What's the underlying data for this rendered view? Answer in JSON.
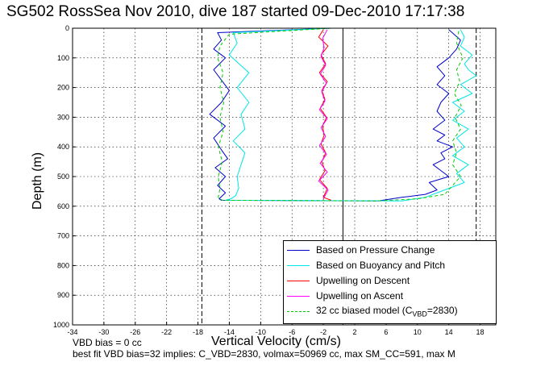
{
  "title": "SG502 RossSea Nov 2010, dive 187 started 09-Dec-2010 17:17:38",
  "notes": {
    "line1": "VBD bias = 0 cc",
    "line2": "best fit VBD bias=32 implies: C_VBD=2830, volmax=50969 cc, max SM_CC=591, max M"
  },
  "chart_data": {
    "type": "line",
    "xlabel": "Vertical Velocity (cm/s)",
    "ylabel": "Depth (m)",
    "xlim": [
      -34,
      20
    ],
    "ylim": [
      1000,
      0
    ],
    "xticks": [
      -34,
      -30,
      -26,
      -22,
      -18,
      -14,
      -10,
      -6,
      -2,
      2,
      6,
      10,
      14,
      18
    ],
    "yticks": [
      0,
      100,
      200,
      300,
      400,
      500,
      600,
      700,
      800,
      900,
      1000
    ],
    "grid": true,
    "legend_position": "bottom-right",
    "reference_lines": {
      "dashed_x": [
        -17.5,
        17.5
      ],
      "solid_x": [
        0.5
      ]
    },
    "legend": [
      {
        "label": "Based on Pressure Change",
        "color": "#0000cc",
        "dash": false
      },
      {
        "label": "Based on Buoyancy and Pitch",
        "color": "#00e6e6",
        "dash": false
      },
      {
        "label": "Upwelling on Descent",
        "color": "#ff0000",
        "dash": false
      },
      {
        "label": "Upwelling on Ascent",
        "color": "#ff00ff",
        "dash": false
      },
      {
        "label": "32 cc biased model (C",
        "sub": "VBD",
        "suffix": "=2830)",
        "color": "#00cc00",
        "dash": true
      }
    ],
    "series": [
      {
        "name": "Based on Pressure Change",
        "color": "#0000cc",
        "x": [
          -1,
          -15.5,
          -15,
          -16,
          -14.5,
          -16,
          -15,
          -14,
          -15,
          -16.5,
          -14.5,
          -16,
          -15,
          -14.2,
          -15.8,
          -14.5,
          -15.5,
          -14.5,
          -15.3,
          -15,
          5,
          8,
          11,
          12.5,
          11.5,
          14,
          13,
          12,
          13.5,
          13,
          14.5,
          12.5,
          13.5,
          12,
          13.5,
          12.5,
          13,
          14,
          12.5,
          13.5,
          12.5,
          14,
          15,
          15.5,
          14
        ],
        "y": [
          0,
          15,
          40,
          70,
          100,
          140,
          175,
          210,
          250,
          290,
          330,
          370,
          410,
          440,
          470,
          500,
          530,
          555,
          575,
          580,
          582,
          570,
          560,
          545,
          520,
          500,
          480,
          460,
          440,
          420,
          400,
          380,
          360,
          340,
          310,
          280,
          250,
          220,
          190,
          160,
          130,
          100,
          70,
          40,
          5
        ]
      },
      {
        "name": "Based on Buoyancy and Pitch",
        "color": "#00e6e6",
        "x": [
          -1,
          -13.5,
          -13,
          -14,
          -11.5,
          -13,
          -11.5,
          -12.5,
          -12,
          -13.5,
          -12,
          -12.5,
          -13,
          -12.8,
          -13.2,
          -13.8,
          -14.5,
          8,
          11,
          13,
          16,
          15,
          16.5,
          14.5,
          16,
          15,
          16.5,
          14.5,
          16,
          14.5,
          17,
          15.5,
          17.5,
          16.5,
          16,
          17,
          15.5,
          16,
          15.5
        ],
        "y": [
          0,
          15,
          50,
          90,
          150,
          200,
          250,
          290,
          340,
          380,
          420,
          460,
          500,
          540,
          565,
          575,
          580,
          582,
          570,
          550,
          520,
          490,
          460,
          430,
          400,
          370,
          340,
          310,
          280,
          250,
          220,
          190,
          160,
          140,
          120,
          90,
          60,
          30,
          5
        ]
      },
      {
        "name": "Upwelling on Descent",
        "color": "#ff0000",
        "x": [
          -2,
          -2.6,
          -1.4,
          -2.3,
          -1.7,
          -2.5,
          -1.5,
          -2.2,
          -1.8,
          -2.4,
          -1.6,
          -2.1,
          -1.9,
          -2.3,
          -1.7,
          -2.2,
          -1.8,
          -2.5,
          -1.5,
          -2,
          -1
        ],
        "y": [
          5,
          30,
          60,
          90,
          120,
          150,
          180,
          210,
          240,
          270,
          300,
          330,
          360,
          390,
          420,
          450,
          480,
          510,
          540,
          570,
          580
        ]
      },
      {
        "name": "Upwelling on Ascent",
        "color": "#ff00ff",
        "x": [
          -2,
          -1.4,
          -2.6,
          -1.5,
          -2.4,
          -1.6,
          -2.5,
          -1.7,
          -2.3,
          -1.5,
          -2.5,
          -1.8,
          -2.2,
          -1.6,
          -2.4,
          -1.7,
          -2.3,
          -1.9,
          -2.1,
          -1.5
        ],
        "y": [
          575,
          545,
          515,
          485,
          455,
          425,
          395,
          365,
          335,
          305,
          275,
          245,
          215,
          185,
          155,
          125,
          95,
          65,
          35,
          5
        ]
      },
      {
        "name": "32 cc biased model (CVBD=2830)",
        "color": "#00cc00",
        "x": [
          -1,
          -14,
          -15.2,
          -15.5,
          -14.8,
          -15.2,
          -14.7,
          -15.2,
          -14.8,
          -15.4,
          -14.9,
          -15.4,
          -15.2,
          -15.4,
          -14.9,
          5,
          10,
          13.5,
          14.5,
          15.5,
          14.5,
          15,
          14.5,
          15.5,
          14.8,
          15.6,
          14.7,
          15.4,
          15,
          15.8,
          15,
          15.3
        ],
        "y": [
          0,
          20,
          60,
          100,
          150,
          200,
          250,
          300,
          350,
          400,
          450,
          500,
          540,
          570,
          580,
          582,
          575,
          560,
          530,
          500,
          460,
          420,
          380,
          340,
          300,
          260,
          220,
          180,
          140,
          100,
          50,
          5
        ]
      }
    ]
  }
}
